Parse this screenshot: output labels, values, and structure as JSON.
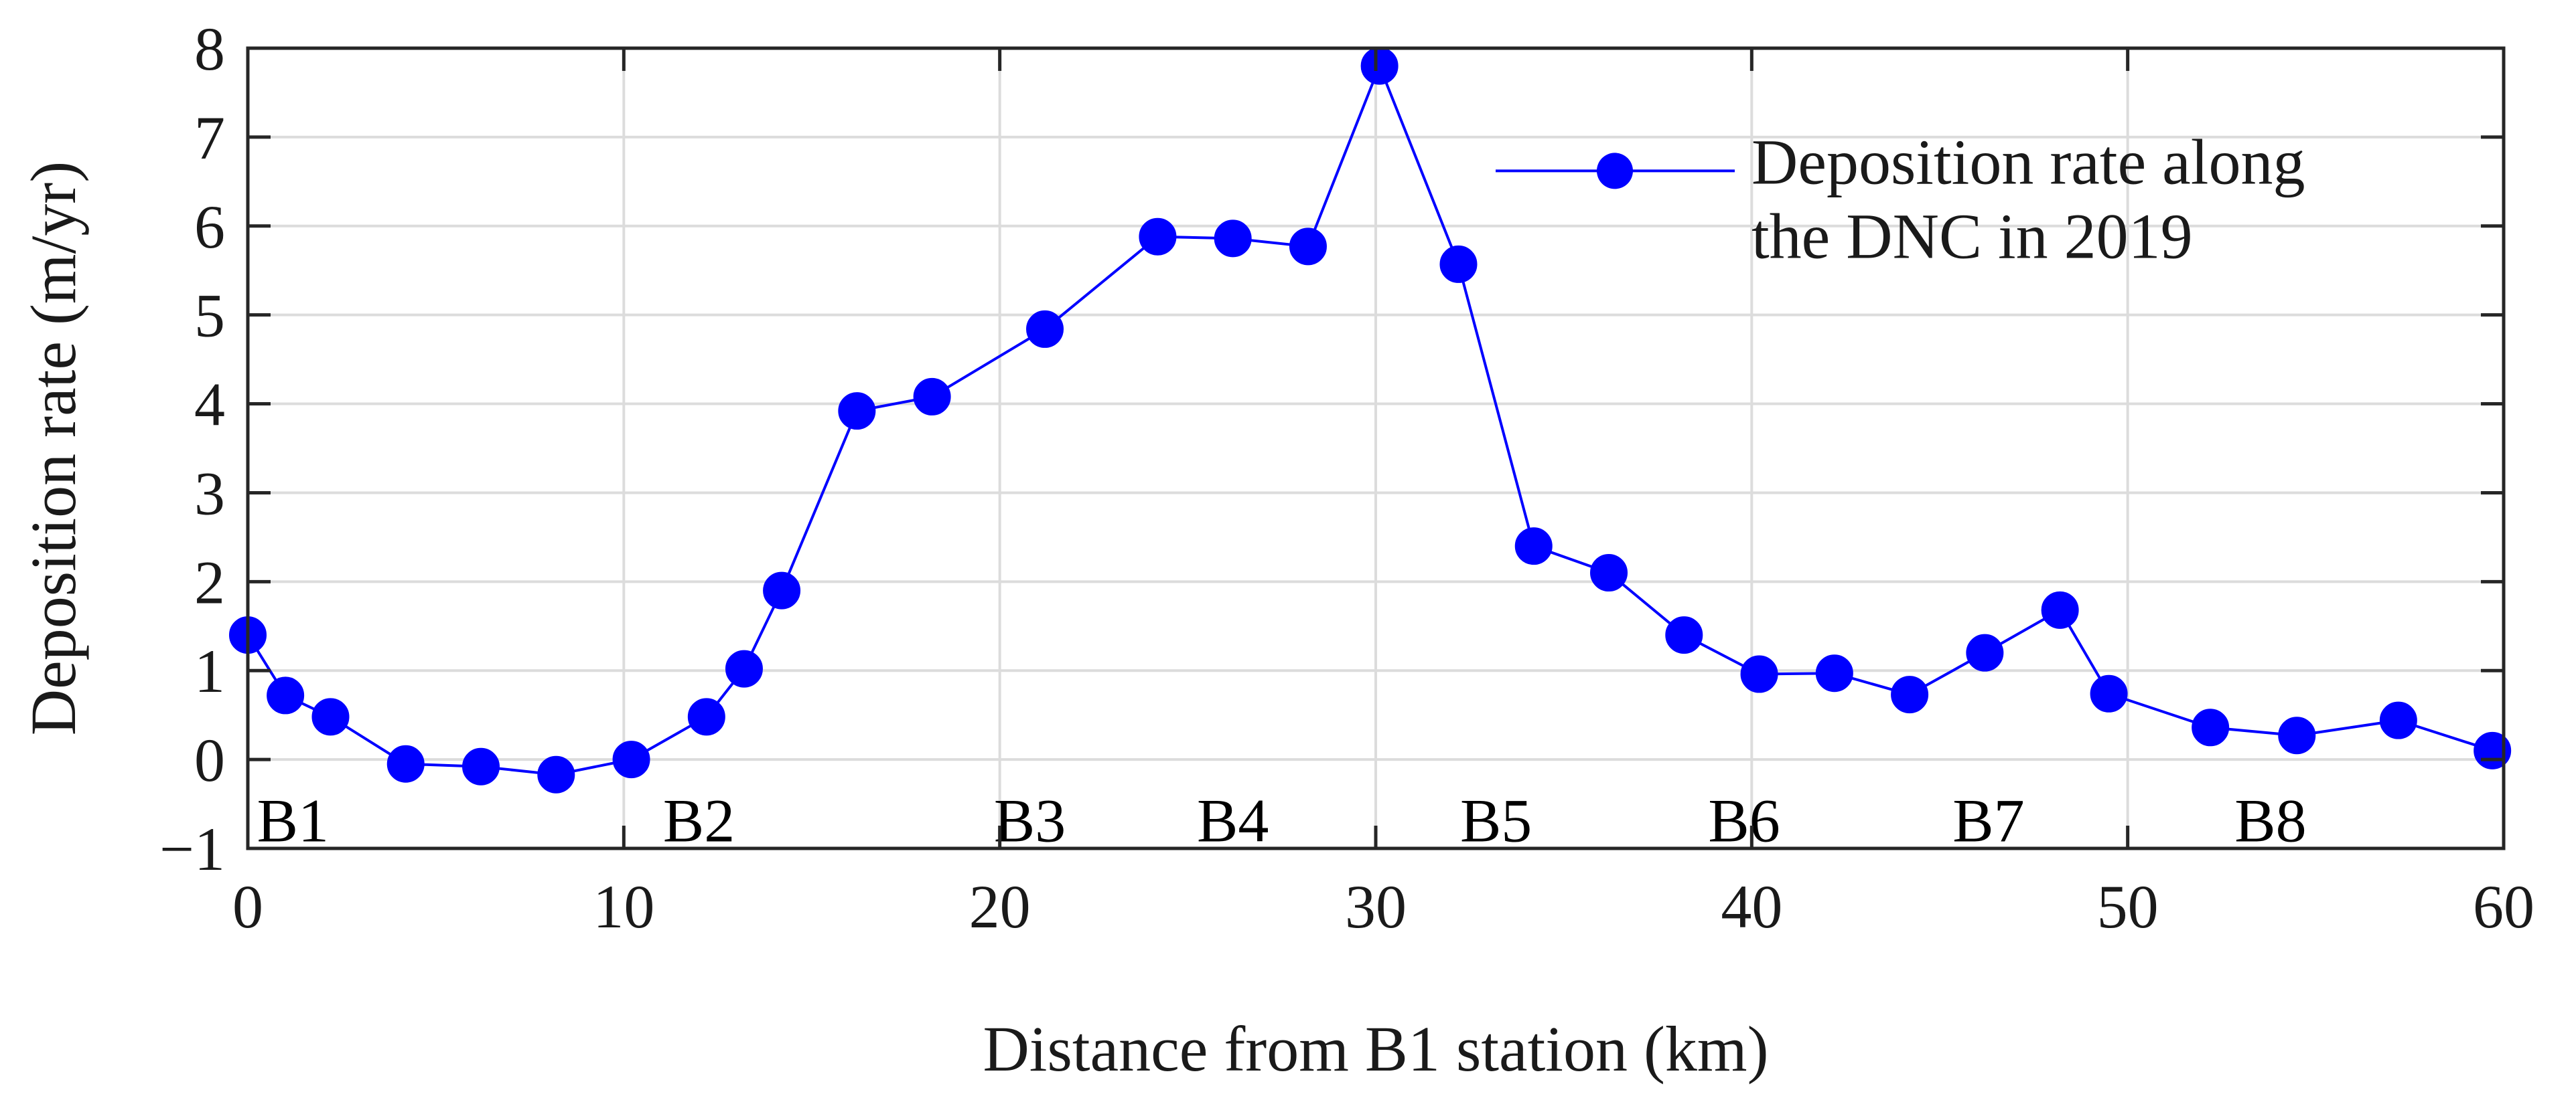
{
  "chart_data": {
    "type": "line",
    "xlabel": "Distance from B1 station (km)",
    "ylabel": "Deposition rate (m/yr)",
    "xlim": [
      0,
      60
    ],
    "ylim": [
      -1,
      8
    ],
    "xticks": [
      0,
      10,
      20,
      30,
      40,
      50,
      60
    ],
    "yticks": [
      -1,
      0,
      1,
      2,
      3,
      4,
      5,
      6,
      7,
      8
    ],
    "xtick_labels": [
      "0",
      "10",
      "20",
      "30",
      "40",
      "50",
      "60"
    ],
    "ytick_labels": [
      "−1",
      "0",
      "1",
      "2",
      "3",
      "4",
      "5",
      "6",
      "7",
      "8"
    ],
    "grid": true,
    "legend_position": "top-right",
    "legend_lines": [
      "Deposition rate along",
      "the DNC in 2019"
    ],
    "colors": {
      "series": "#0000ff",
      "grid": "#dcdcdc",
      "axis": "#262626"
    },
    "series": [
      {
        "name": "Deposition rate along the DNC in 2019",
        "marker": "circle",
        "x": [
          0,
          1,
          2.2,
          4.2,
          6.2,
          8.2,
          10.2,
          12.2,
          13.2,
          14.2,
          16.2,
          18.2,
          21.2,
          24.2,
          26.2,
          28.2,
          30.1,
          32.2,
          34.2,
          36.2,
          38.2,
          40.2,
          42.2,
          44.2,
          46.2,
          48.2,
          49.5,
          52.2,
          54.5,
          57.2,
          59.7
        ],
        "y": [
          1.4,
          0.72,
          0.48,
          -0.05,
          -0.08,
          -0.17,
          0.0,
          0.48,
          1.02,
          1.9,
          3.92,
          4.08,
          4.84,
          5.88,
          5.86,
          5.77,
          7.8,
          5.57,
          2.4,
          2.1,
          1.4,
          0.96,
          0.97,
          0.73,
          1.2,
          1.68,
          0.74,
          0.36,
          0.27,
          0.44,
          0.1
        ]
      }
    ],
    "stations": [
      {
        "label": "B1",
        "x": 1.2
      },
      {
        "label": "B2",
        "x": 12.0
      },
      {
        "label": "B3",
        "x": 20.8
      },
      {
        "label": "B4",
        "x": 26.2
      },
      {
        "label": "B5",
        "x": 33.2
      },
      {
        "label": "B6",
        "x": 39.8
      },
      {
        "label": "B7",
        "x": 46.3
      },
      {
        "label": "B8",
        "x": 53.8
      }
    ]
  }
}
